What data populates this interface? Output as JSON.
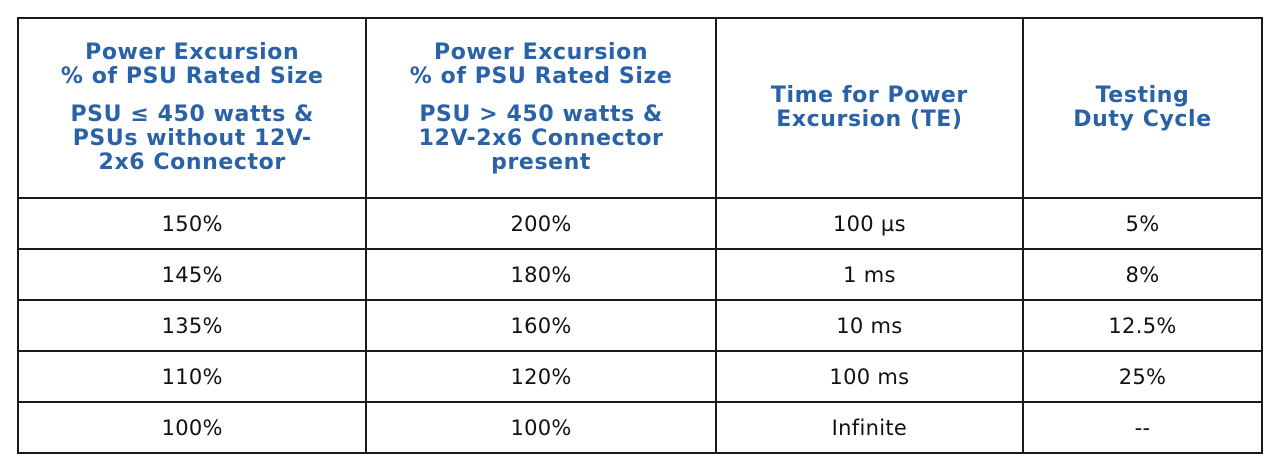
{
  "table": {
    "headers": [
      {
        "block1": [
          "Power Excursion",
          "% of PSU Rated Size"
        ],
        "block2": [
          "PSU ≤ 450 watts &",
          "PSUs without 12V-",
          "2x6 Connector"
        ]
      },
      {
        "block1": [
          "Power Excursion",
          "% of PSU Rated Size"
        ],
        "block2": [
          "PSU > 450 watts &",
          "12V-2x6 Connector",
          "present"
        ]
      },
      {
        "block1": [
          "Time for Power",
          "Excursion (TE)"
        ],
        "block2": []
      },
      {
        "block1": [
          "Testing",
          "Duty Cycle"
        ],
        "block2": []
      }
    ],
    "rows": [
      [
        "150%",
        "200%",
        "100 µs",
        "5%"
      ],
      [
        "145%",
        "180%",
        "1 ms",
        "8%"
      ],
      [
        "135%",
        "160%",
        "10 ms",
        "12.5%"
      ],
      [
        "110%",
        "120%",
        "100 ms",
        "25%"
      ],
      [
        "100%",
        "100%",
        "Infinite",
        "--"
      ]
    ]
  },
  "colors": {
    "header_text": "#2a62a8",
    "border": "#1a1a1a",
    "cell_text": "#111111"
  }
}
